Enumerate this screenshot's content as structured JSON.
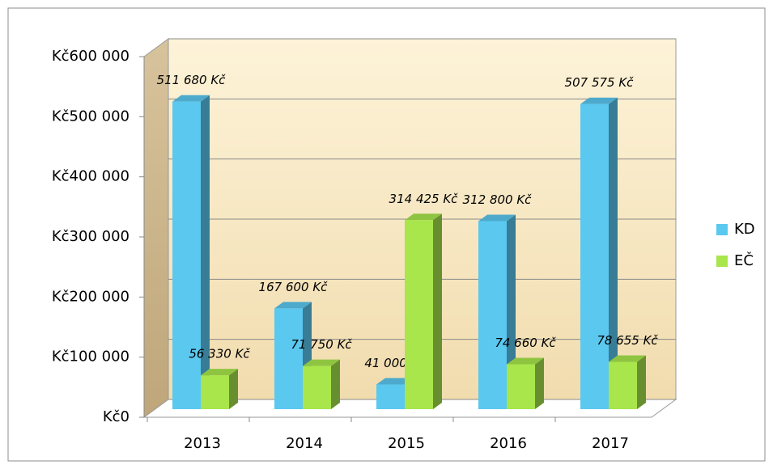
{
  "chart_data": {
    "type": "bar3d",
    "categories": [
      "2013",
      "2014",
      "2015",
      "2016",
      "2017"
    ],
    "series": [
      {
        "name": "KD",
        "color": "#5bc8f0",
        "values": [
          511680,
          167600,
          41000,
          312800,
          507575
        ],
        "value_labels": [
          "511 680 Kč",
          "167 600 Kč",
          "41 000 Kč",
          "312 800 Kč",
          "507 575 Kč"
        ]
      },
      {
        "name": "EČ",
        "color": "#a8e64c",
        "values": [
          56330,
          71750,
          314425,
          74660,
          78655
        ],
        "value_labels": [
          "56 330 Kč",
          "71 750 Kč",
          "314 425 Kč",
          "74 660 Kč",
          "78 655 Kč"
        ]
      }
    ],
    "ylim": [
      0,
      600000
    ],
    "yticks": [
      {
        "value": 0,
        "label": "Kč0"
      },
      {
        "value": 100000,
        "label": "Kč100 000"
      },
      {
        "value": 200000,
        "label": "Kč200 000"
      },
      {
        "value": 300000,
        "label": "Kč300 000"
      },
      {
        "value": 400000,
        "label": "Kč400 000"
      },
      {
        "value": 500000,
        "label": "Kč500 000"
      },
      {
        "value": 600000,
        "label": "Kč600 000"
      }
    ],
    "grid": true,
    "legend": "right"
  }
}
